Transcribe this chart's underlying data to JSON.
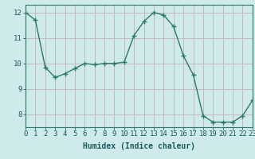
{
  "x": [
    0,
    1,
    2,
    3,
    4,
    5,
    6,
    7,
    8,
    9,
    10,
    11,
    12,
    13,
    14,
    15,
    16,
    17,
    18,
    19,
    20,
    21,
    22,
    23
  ],
  "y": [
    12.0,
    11.7,
    9.85,
    9.45,
    9.6,
    9.8,
    10.0,
    9.95,
    10.0,
    10.0,
    10.05,
    11.1,
    11.65,
    12.0,
    11.9,
    11.45,
    10.3,
    9.55,
    7.95,
    7.7,
    7.7,
    7.7,
    7.95,
    8.55
  ],
  "line_color": "#2d7a6a",
  "marker": "+",
  "marker_size": 4,
  "line_width": 1.0,
  "bg_color": "#ceeaea",
  "grid_color_h": "#c8b0b8",
  "grid_color_v": "#c8b0b8",
  "xlabel": "Humidex (Indice chaleur)",
  "xlim": [
    0,
    23
  ],
  "ylim": [
    7.5,
    12.3
  ],
  "yticks": [
    8,
    9,
    10,
    11,
    12
  ],
  "xticks": [
    0,
    1,
    2,
    3,
    4,
    5,
    6,
    7,
    8,
    9,
    10,
    11,
    12,
    13,
    14,
    15,
    16,
    17,
    18,
    19,
    20,
    21,
    22,
    23
  ],
  "xlabel_fontsize": 7,
  "tick_fontsize": 6.5,
  "tick_color": "#1a5a5a",
  "axis_color": "#2d7a6a"
}
